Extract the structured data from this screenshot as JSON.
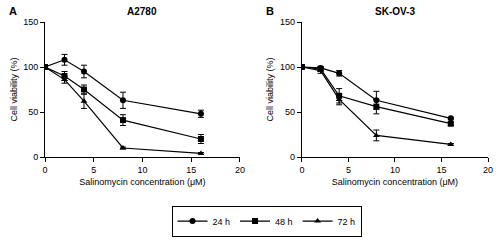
{
  "chart_data": [
    {
      "type": "line",
      "panel_label": "A",
      "title": "A2780",
      "x_label": "Salinomycin concentration (μM)",
      "y_label": "Cell viability (%)",
      "x": [
        0,
        2,
        4,
        8,
        16
      ],
      "series": [
        {
          "name": "24 h",
          "color": "#000000",
          "marker": "circle",
          "values": [
            100,
            108,
            95,
            63,
            48
          ],
          "errors": [
            0,
            6,
            7,
            9,
            4
          ]
        },
        {
          "name": "48 h",
          "color": "#000000",
          "marker": "square",
          "values": [
            100,
            90,
            75,
            41,
            20
          ],
          "errors": [
            0,
            5,
            5,
            6,
            5
          ]
        },
        {
          "name": "72 h",
          "color": "#000000",
          "marker": "triangle-up",
          "values": [
            100,
            86,
            62,
            10,
            4
          ],
          "errors": [
            0,
            4,
            8,
            1,
            1
          ]
        }
      ],
      "xlim": [
        0,
        20
      ],
      "xticks": [
        0,
        5,
        10,
        15,
        20
      ],
      "ylim": [
        0,
        150
      ],
      "yticks": [
        0,
        50,
        100,
        150
      ],
      "grid": false,
      "legend": "bottom"
    },
    {
      "type": "line",
      "panel_label": "B",
      "title": "SK-OV-3",
      "x_label": "Salinomycin concentration (μM)",
      "y_label": "Cell viability (%)",
      "x": [
        0,
        2,
        4,
        8,
        16
      ],
      "series": [
        {
          "name": "24 h",
          "color": "#000000",
          "marker": "circle",
          "values": [
            100,
            99,
            93,
            63,
            43
          ],
          "errors": [
            0,
            1,
            3,
            10,
            1
          ]
        },
        {
          "name": "48 h",
          "color": "#000000",
          "marker": "square",
          "values": [
            100,
            98,
            68,
            56,
            37
          ],
          "errors": [
            0,
            2,
            8,
            8,
            2
          ]
        },
        {
          "name": "72 h",
          "color": "#000000",
          "marker": "triangle-up",
          "values": [
            100,
            96,
            64,
            24,
            14
          ],
          "errors": [
            0,
            3,
            6,
            6,
            1
          ]
        }
      ],
      "xlim": [
        0,
        20
      ],
      "xticks": [
        0,
        5,
        10,
        15,
        20
      ],
      "ylim": [
        0,
        150
      ],
      "yticks": [
        0,
        50,
        100,
        150
      ],
      "grid": false,
      "legend": "bottom"
    }
  ]
}
